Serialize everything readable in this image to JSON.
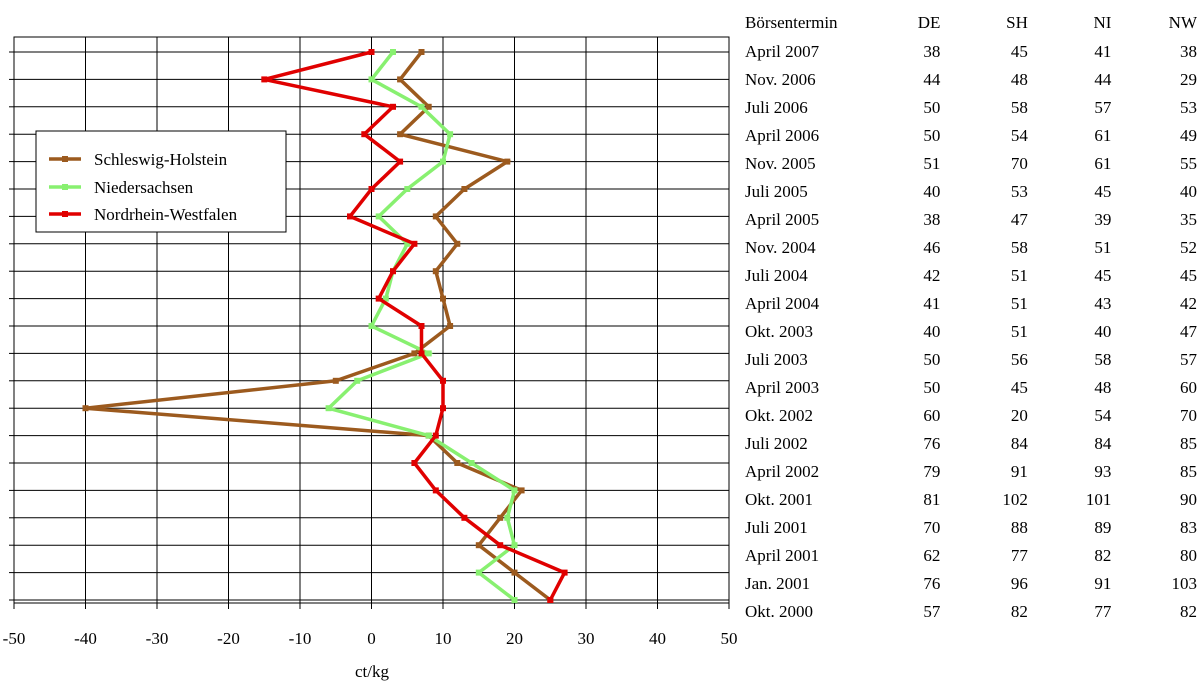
{
  "chart_data": {
    "type": "line",
    "orientation": "horizontal",
    "xlabel": "ct/kg",
    "xlim": [
      -50,
      50
    ],
    "xticks": [
      -50,
      -40,
      -30,
      -20,
      -10,
      0,
      10,
      20,
      30,
      40,
      50
    ],
    "grid": true,
    "legend_position": "top-left",
    "categories": [
      "April 2007",
      "Nov. 2006",
      "Juli 2006",
      "April 2006",
      "Nov. 2005",
      "Juli 2005",
      "April 2005",
      "Nov. 2004",
      "Juli 2004",
      "April 2004",
      "Okt. 2003",
      "Juli 2003",
      "April 2003",
      "Okt. 2002",
      "Juli 2002",
      "April 2002",
      "Okt. 2001",
      "Juli 2001",
      "April 2001",
      "Jan. 2001",
      "Okt. 2000"
    ],
    "series": [
      {
        "name": "Schleswig-Holstein",
        "color": "#9c5a1e",
        "values": [
          7,
          4,
          8,
          4,
          19,
          13,
          9,
          12,
          9,
          10,
          11,
          6,
          -5,
          -40,
          8,
          12,
          21,
          18,
          15,
          20,
          25
        ]
      },
      {
        "name": "Niedersachsen",
        "color": "#88f070",
        "values": [
          3,
          0,
          7,
          11,
          10,
          5,
          1,
          5,
          3,
          2,
          0,
          8,
          -2,
          -6,
          8,
          14,
          20,
          19,
          20,
          15,
          20
        ]
      },
      {
        "name": "Nordrhein-Westfalen",
        "color": "#e00000",
        "values": [
          0,
          -15,
          3,
          -1,
          4,
          0,
          -3,
          6,
          3,
          1,
          7,
          7,
          10,
          10,
          9,
          6,
          9,
          13,
          18,
          27,
          25
        ]
      }
    ]
  },
  "table": {
    "headers": [
      "Börsentermin",
      "DE",
      "SH",
      "NI",
      "NW"
    ],
    "rows": [
      [
        "April 2007",
        "38",
        "45",
        "41",
        "38"
      ],
      [
        "Nov. 2006",
        "44",
        "48",
        "44",
        "29"
      ],
      [
        "Juli 2006",
        "50",
        "58",
        "57",
        "53"
      ],
      [
        "April 2006",
        "50",
        "54",
        "61",
        "49"
      ],
      [
        "Nov. 2005",
        "51",
        "70",
        "61",
        "55"
      ],
      [
        "Juli 2005",
        "40",
        "53",
        "45",
        "40"
      ],
      [
        "April 2005",
        "38",
        "47",
        "39",
        "35"
      ],
      [
        "Nov. 2004",
        "46",
        "58",
        "51",
        "52"
      ],
      [
        "Juli 2004",
        "42",
        "51",
        "45",
        "45"
      ],
      [
        "April 2004",
        "41",
        "51",
        "43",
        "42"
      ],
      [
        "Okt. 2003",
        "40",
        "51",
        "40",
        "47"
      ],
      [
        "Juli 2003",
        "50",
        "56",
        "58",
        "57"
      ],
      [
        "April 2003",
        "50",
        "45",
        "48",
        "60"
      ],
      [
        "Okt. 2002",
        "60",
        "20",
        "54",
        "70"
      ],
      [
        "Juli 2002",
        "76",
        "84",
        "84",
        "85"
      ],
      [
        "April 2002",
        "79",
        "91",
        "93",
        "85"
      ],
      [
        "Okt. 2001",
        "81",
        "102",
        "101",
        "90"
      ],
      [
        "Juli 2001",
        "70",
        "88",
        "89",
        "83"
      ],
      [
        "April 2001",
        "62",
        "77",
        "82",
        "80"
      ],
      [
        "Jan. 2001",
        "76",
        "96",
        "91",
        "103"
      ],
      [
        "Okt. 2000",
        "57",
        "82",
        "77",
        "82"
      ]
    ]
  }
}
